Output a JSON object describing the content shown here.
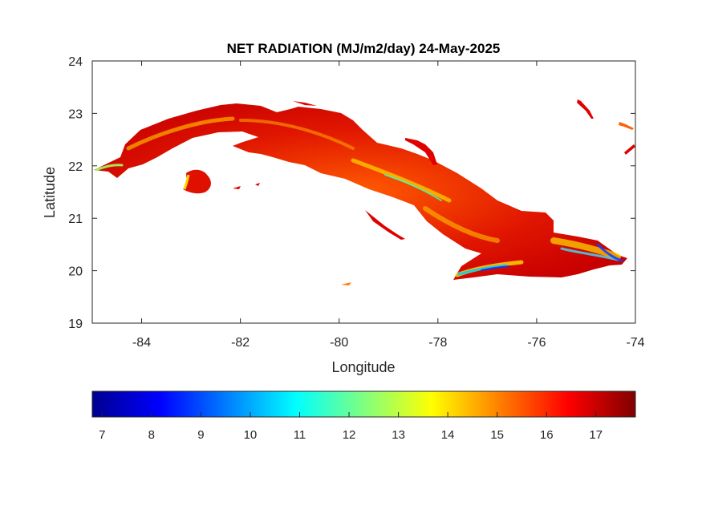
{
  "chart_data": {
    "type": "heatmap",
    "title": "NET RADIATION (MJ/m2/day) 24-May-2025",
    "xlabel": "Longitude",
    "ylabel": "Latitude",
    "xlim": [
      -85,
      -74
    ],
    "ylim": [
      19,
      24
    ],
    "xticks": [
      -84,
      -82,
      -80,
      -78,
      -76,
      -74
    ],
    "xtick_labels": [
      "-84",
      "-82",
      "-80",
      "-78",
      "-76",
      "-74"
    ],
    "yticks": [
      19,
      20,
      21,
      22,
      23,
      24
    ],
    "ytick_labels": [
      "19",
      "20",
      "21",
      "22",
      "23",
      "24"
    ],
    "colormap": "jet",
    "colorbar": {
      "location": "bottom",
      "range": [
        6.8,
        17.8
      ],
      "ticks": [
        7,
        8,
        9,
        10,
        11,
        12,
        13,
        14,
        15,
        16,
        17
      ],
      "tick_labels": [
        "7",
        "8",
        "9",
        "10",
        "11",
        "12",
        "13",
        "14",
        "15",
        "16",
        "17"
      ]
    },
    "description_values": {
      "dominant_range": [
        15,
        17.8
      ],
      "min_regions": "southeast coast ~8-10"
    }
  }
}
